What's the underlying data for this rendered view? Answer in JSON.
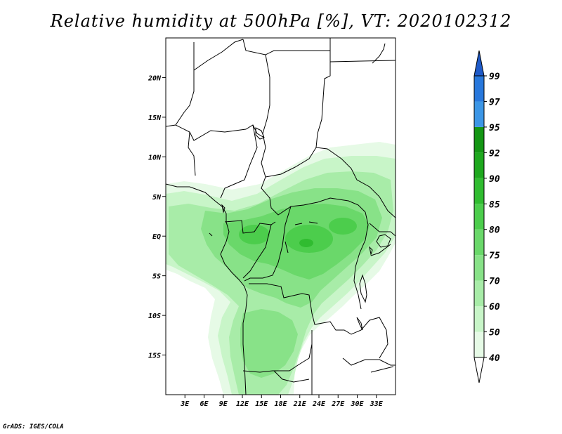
{
  "title": "Relative humidity at 500hPa [%], VT: 2020102312",
  "credit": "GrADS: IGES/COLA",
  "map": {
    "lon_range": [
      0,
      36
    ],
    "lat_range": [
      -20,
      25
    ],
    "lat_ticks": [
      {
        "value": 20,
        "label": "20N"
      },
      {
        "value": 15,
        "label": "15N"
      },
      {
        "value": 10,
        "label": "10N"
      },
      {
        "value": 5,
        "label": "5N"
      },
      {
        "value": 0,
        "label": "EQ"
      },
      {
        "value": -5,
        "label": "5S"
      },
      {
        "value": -10,
        "label": "10S"
      },
      {
        "value": -15,
        "label": "15S"
      }
    ],
    "lon_ticks": [
      {
        "value": 3,
        "label": "3E"
      },
      {
        "value": 6,
        "label": "6E"
      },
      {
        "value": 9,
        "label": "9E"
      },
      {
        "value": 12,
        "label": "12E"
      },
      {
        "value": 15,
        "label": "15E"
      },
      {
        "value": 18,
        "label": "18E"
      },
      {
        "value": 21,
        "label": "21E"
      },
      {
        "value": 24,
        "label": "24E"
      },
      {
        "value": 27,
        "label": "27E"
      },
      {
        "value": 30,
        "label": "30E"
      },
      {
        "value": 33,
        "label": "33E"
      }
    ]
  },
  "colorbar": {
    "levels": [
      "40",
      "50",
      "60",
      "70",
      "75",
      "80",
      "85",
      "90",
      "92",
      "95",
      "97",
      "99"
    ],
    "colors": [
      "#ffffff",
      "#e6fae6",
      "#c8f5c8",
      "#a8eca8",
      "#88e288",
      "#6ad86a",
      "#4ccd4c",
      "#30bc30",
      "#1ea81e",
      "#149614",
      "#3c96e6",
      "#2878dc",
      "#1e5ac8"
    ]
  },
  "colors": {
    "border": "#000000",
    "frame": "#000000"
  }
}
